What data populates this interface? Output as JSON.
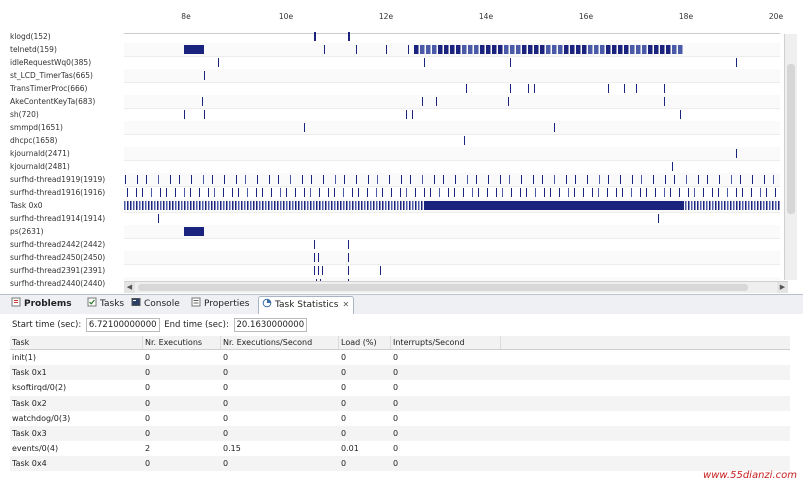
{
  "timeline": {
    "time_ticks": [
      "8e",
      "10e",
      "12e",
      "14e",
      "16e",
      "18e",
      "20e"
    ],
    "rows": [
      {
        "label": "klogd(152)"
      },
      {
        "label": "telnetd(159)"
      },
      {
        "label": "idleRequestWq0(385)"
      },
      {
        "label": "st_LCD_TimerTas(665)"
      },
      {
        "label": "TransTimerProc(666)"
      },
      {
        "label": "AkeContentKeyTa(683)"
      },
      {
        "label": "sh(720)"
      },
      {
        "label": "smmpd(1651)"
      },
      {
        "label": "dhcpc(1658)"
      },
      {
        "label": "kjournald(2471)"
      },
      {
        "label": "kjournald(2481)"
      },
      {
        "label": "surfhd-thread1919(1919)"
      },
      {
        "label": "surfhd-thread1916(1916)"
      },
      {
        "label": "Task 0x0"
      },
      {
        "label": "surfhd-thread1914(1914)"
      },
      {
        "label": "ps(2631)"
      },
      {
        "label": "surfhd-thread2442(2442)"
      },
      {
        "label": "surfhd-thread2450(2450)"
      },
      {
        "label": "surfhd-thread2391(2391)"
      },
      {
        "label": "surfhd-thread2440(2440)"
      }
    ]
  },
  "tabs": [
    {
      "label": "Problems",
      "icon": "problems-icon",
      "active": false
    },
    {
      "label": "Tasks",
      "icon": "tasks-icon",
      "active": false
    },
    {
      "label": "Console",
      "icon": "console-icon",
      "active": false
    },
    {
      "label": "Properties",
      "icon": "properties-icon",
      "active": false
    },
    {
      "label": "Task Statistics",
      "icon": "task-statistics-icon",
      "active": true
    }
  ],
  "stats": {
    "start_label": "Start time (sec):",
    "start_value": "6.72100000000",
    "end_label": "End time (sec):",
    "end_value": "20.1630000000",
    "columns": [
      "Task",
      "Nr. Executions",
      "Nr. Executions/Second",
      "Load (%)",
      "Interrupts/Second"
    ],
    "rows": [
      [
        "init(1)",
        "0",
        "0",
        "0",
        "0"
      ],
      [
        "Task 0x1",
        "0",
        "0",
        "0",
        "0"
      ],
      [
        "ksoftirqd/0(2)",
        "0",
        "0",
        "0",
        "0"
      ],
      [
        "Task 0x2",
        "0",
        "0",
        "0",
        "0"
      ],
      [
        "watchdog/0(3)",
        "0",
        "0",
        "0",
        "0"
      ],
      [
        "Task 0x3",
        "0",
        "0",
        "0",
        "0"
      ],
      [
        "events/0(4)",
        "2",
        "0.15",
        "0.01",
        "0"
      ],
      [
        "Task 0x4",
        "0",
        "0",
        "0",
        "0"
      ]
    ]
  },
  "watermark": "www.55dianzi.com",
  "colors": {
    "event": "#1a237e",
    "event_light": "#4a5aa8"
  }
}
